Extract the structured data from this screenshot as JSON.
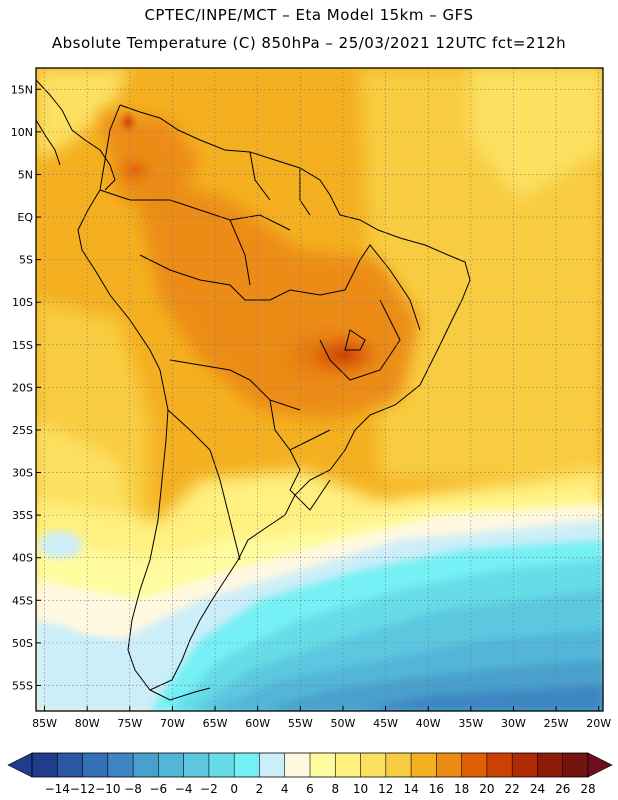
{
  "header": {
    "line1": "CPTEC/INPE/MCT –  Eta Model 15km – GFS",
    "line2": "Absolute Temperature (C) 850hPa – 25/03/2021 12UTC fct=212h"
  },
  "map": {
    "lon_range": [
      -86,
      -19.5
    ],
    "lat_range": [
      -58,
      17.5
    ],
    "lat_ticks": [
      "15N",
      "10N",
      "5N",
      "EQ",
      "5S",
      "10S",
      "15S",
      "20S",
      "25S",
      "30S",
      "35S",
      "40S",
      "45S",
      "50S",
      "55S"
    ],
    "lat_values": [
      15,
      10,
      5,
      0,
      -5,
      -10,
      -15,
      -20,
      -25,
      -30,
      -35,
      -40,
      -45,
      -50,
      -55
    ],
    "lon_ticks": [
      "85W",
      "80W",
      "75W",
      "70W",
      "65W",
      "60W",
      "55W",
      "50W",
      "45W",
      "40W",
      "35W",
      "30W",
      "25W",
      "20W"
    ],
    "lon_values": [
      -85,
      -80,
      -75,
      -70,
      -65,
      -60,
      -55,
      -50,
      -45,
      -40,
      -35,
      -30,
      -25,
      -20
    ],
    "field": "Absolute Temperature (C) 850hPa"
  },
  "colorbar": {
    "labels": [
      "-14",
      "-12",
      "-10",
      "-8",
      "-6",
      "-4",
      "-2",
      "0",
      "2",
      "4",
      "6",
      "8",
      "10",
      "12",
      "14",
      "16",
      "18",
      "20",
      "22",
      "24",
      "26",
      "28"
    ],
    "colors": [
      "#1e3e8c",
      "#2a56a4",
      "#3470b4",
      "#3e86c2",
      "#48a0cc",
      "#52b6d8",
      "#5cc8e0",
      "#66dce8",
      "#74f0f4",
      "#cceef8",
      "#fff8e0",
      "#fffca0",
      "#fff080",
      "#fce060",
      "#f8cc40",
      "#f4b020",
      "#ec8c14",
      "#e06008",
      "#cc4004",
      "#b02c04",
      "#8c1c08",
      "#741410"
    ],
    "end_left": "#1e3e8c",
    "end_right": "#6c0e1e"
  }
}
